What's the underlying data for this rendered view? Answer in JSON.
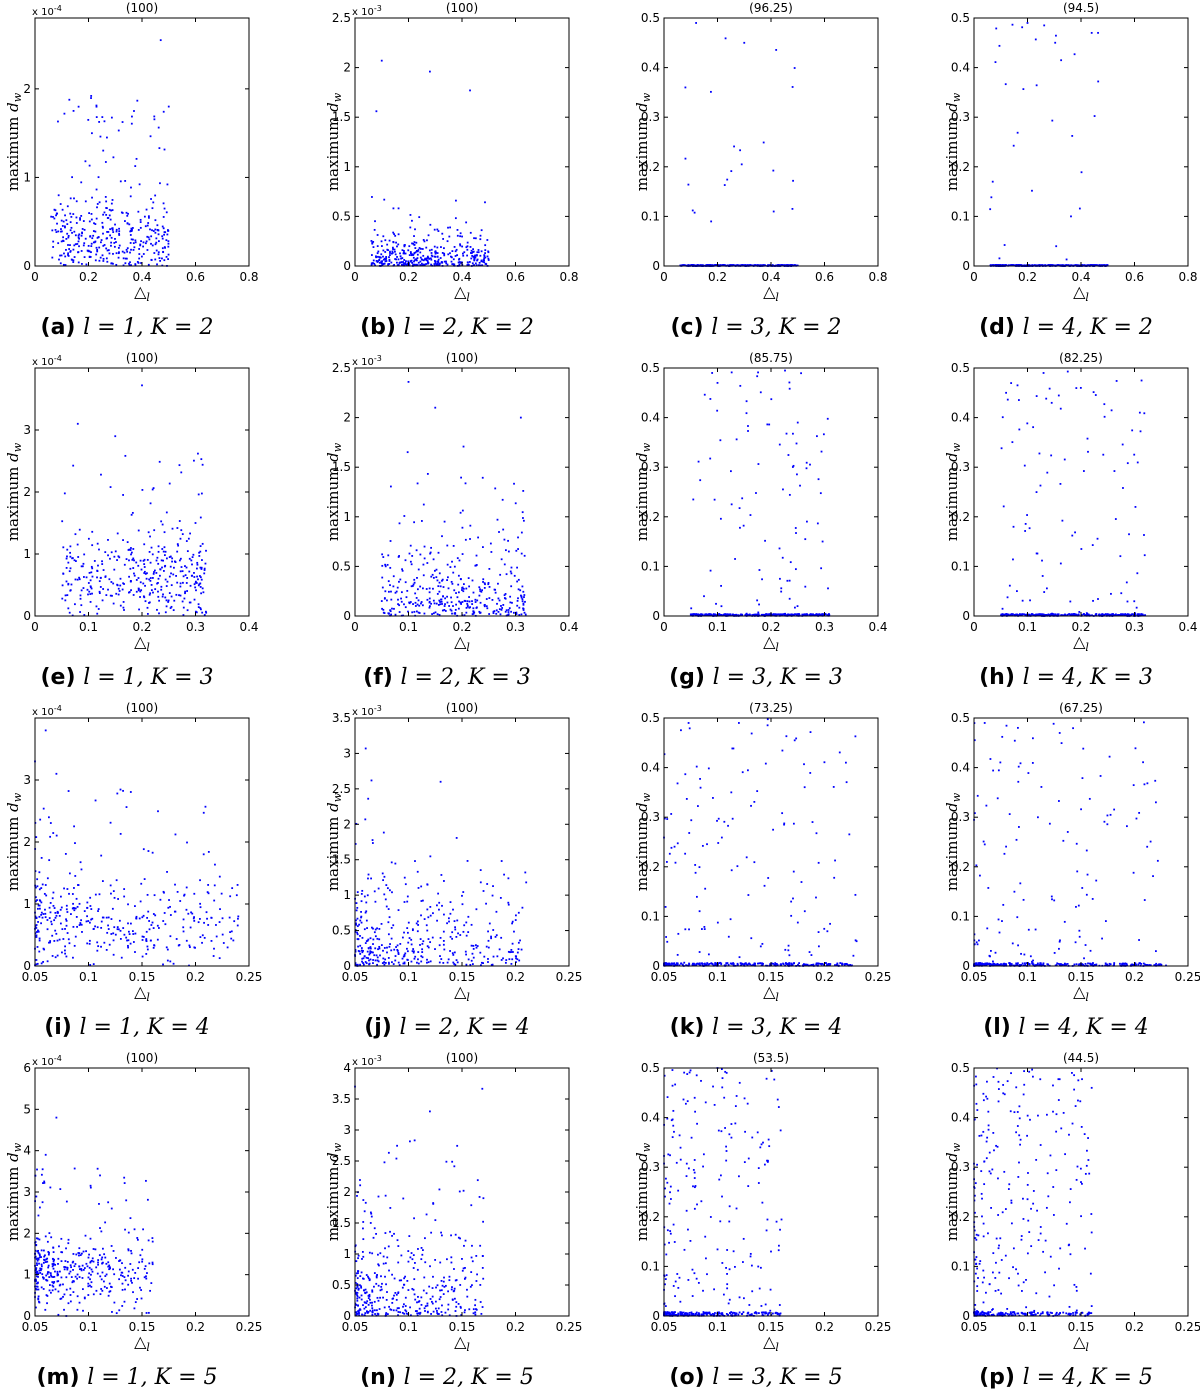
{
  "figure": {
    "y_axis_label": "maximum d_w",
    "x_axis_label": "△_l",
    "point_color": "#0000ff",
    "axis_color": "#000000"
  },
  "chart_data": [
    {
      "type": "scatter",
      "panel": "a",
      "caption_letter": "(a)",
      "caption_math": "l = 1, K = 2",
      "title": "(100)",
      "exponent_label": "x 10^-4",
      "xlim": [
        0,
        0.8
      ],
      "ylim": [
        0,
        0.00028
      ],
      "x_ticks": [
        "0",
        "0.2",
        "0.4",
        "0.6",
        "0.8"
      ],
      "y_ticks": [
        "0",
        "1",
        "2"
      ],
      "x_tick_values": [
        0,
        0.2,
        0.4,
        0.6,
        0.8
      ],
      "y_tick_values": [
        0,
        0.0001,
        0.0002
      ],
      "scatter_profile": {
        "n_points": 400,
        "x_range": [
          0.06,
          0.5
        ],
        "y_dist": "cluster",
        "y_center": 3e-05,
        "y_spread": 4e-05,
        "y_max": 0.00026
      },
      "highlighted_points": [
        {
          "x": 0.47,
          "y": 0.000255
        },
        {
          "x": 0.21,
          "y": 0.000192
        },
        {
          "x": 0.11,
          "y": 0.000172
        },
        {
          "x": 0.5,
          "y": 0.00018
        },
        {
          "x": 0.37,
          "y": 0.000175
        }
      ]
    },
    {
      "type": "scatter",
      "panel": "b",
      "caption_letter": "(b)",
      "caption_math": "l = 2, K = 2",
      "title": "(100)",
      "exponent_label": "x 10^-3",
      "xlim": [
        0,
        0.8
      ],
      "ylim": [
        0,
        0.0025
      ],
      "x_ticks": [
        "0",
        "0.2",
        "0.4",
        "0.6",
        "0.8"
      ],
      "y_ticks": [
        "0",
        "0.5",
        "1",
        "1.5",
        "2",
        "2.5"
      ],
      "x_tick_values": [
        0,
        0.2,
        0.4,
        0.6,
        0.8
      ],
      "y_tick_values": [
        0,
        0.0005,
        0.001,
        0.0015,
        0.002,
        0.0025
      ],
      "scatter_profile": {
        "n_points": 400,
        "x_range": [
          0.06,
          0.5
        ],
        "y_dist": "exp",
        "y_scale": 0.00012,
        "y_max": 0.0021
      },
      "highlighted_points": [
        {
          "x": 0.1,
          "y": 0.00207
        },
        {
          "x": 0.28,
          "y": 0.00196
        },
        {
          "x": 0.43,
          "y": 0.00177
        },
        {
          "x": 0.08,
          "y": 0.00156
        }
      ]
    },
    {
      "type": "scatter",
      "panel": "c",
      "caption_letter": "(c)",
      "caption_math": "l = 3, K = 2",
      "title": "(96.25)",
      "exponent_label": "",
      "xlim": [
        0,
        0.8
      ],
      "ylim": [
        0,
        0.5
      ],
      "x_ticks": [
        "0",
        "0.2",
        "0.4",
        "0.6",
        "0.8"
      ],
      "y_ticks": [
        "0",
        "0.1",
        "0.2",
        "0.3",
        "0.4",
        "0.5"
      ],
      "x_tick_values": [
        0,
        0.2,
        0.4,
        0.6,
        0.8
      ],
      "y_tick_values": [
        0,
        0.1,
        0.2,
        0.3,
        0.4,
        0.5
      ],
      "scatter_profile": {
        "n_points": 400,
        "x_range": [
          0.06,
          0.5
        ],
        "y_dist": "mixture",
        "zero_frac": 0.93,
        "zero_max": 0.002,
        "y_max": 0.5
      },
      "highlighted_points": [
        {
          "x": 0.12,
          "y": 0.49
        },
        {
          "x": 0.3,
          "y": 0.45
        },
        {
          "x": 0.08,
          "y": 0.36
        }
      ]
    },
    {
      "type": "scatter",
      "panel": "d",
      "caption_letter": "(d)",
      "caption_math": "l = 4, K = 2",
      "title": "(94.5)",
      "exponent_label": "",
      "xlim": [
        0,
        0.8
      ],
      "ylim": [
        0,
        0.5
      ],
      "x_ticks": [
        "0",
        "0.2",
        "0.4",
        "0.6",
        "0.8"
      ],
      "y_ticks": [
        "0",
        "0.1",
        "0.2",
        "0.3",
        "0.4",
        "0.5"
      ],
      "x_tick_values": [
        0,
        0.2,
        0.4,
        0.6,
        0.8
      ],
      "y_tick_values": [
        0,
        0.1,
        0.2,
        0.3,
        0.4,
        0.5
      ],
      "scatter_profile": {
        "n_points": 400,
        "x_range": [
          0.06,
          0.5
        ],
        "y_dist": "mixture",
        "zero_frac": 0.92,
        "zero_max": 0.002,
        "y_max": 0.5
      },
      "highlighted_points": [
        {
          "x": 0.2,
          "y": 0.49
        },
        {
          "x": 0.44,
          "y": 0.47
        },
        {
          "x": 0.07,
          "y": 0.17
        }
      ]
    },
    {
      "type": "scatter",
      "panel": "e",
      "caption_letter": "(e)",
      "caption_math": "l = 1, K = 3",
      "title": "(100)",
      "exponent_label": "x 10^-4",
      "xlim": [
        0,
        0.4
      ],
      "ylim": [
        0,
        0.0004
      ],
      "x_ticks": [
        "0",
        "0.1",
        "0.2",
        "0.3",
        "0.4"
      ],
      "y_ticks": [
        "0",
        "1",
        "2",
        "3"
      ],
      "x_tick_values": [
        0,
        0.1,
        0.2,
        0.3,
        0.4
      ],
      "y_tick_values": [
        0,
        0.0001,
        0.0002,
        0.0003
      ],
      "scatter_profile": {
        "n_points": 400,
        "x_range": [
          0.05,
          0.32
        ],
        "y_dist": "cluster",
        "y_center": 6e-05,
        "y_spread": 6e-05,
        "y_max": 0.00037
      },
      "highlighted_points": [
        {
          "x": 0.2,
          "y": 0.000372
        },
        {
          "x": 0.08,
          "y": 0.00031
        },
        {
          "x": 0.15,
          "y": 0.00029
        },
        {
          "x": 0.3,
          "y": 0.00015
        }
      ]
    },
    {
      "type": "scatter",
      "panel": "f",
      "caption_letter": "(f)",
      "caption_math": "l = 2, K = 3",
      "title": "(100)",
      "exponent_label": "x 10^-3",
      "xlim": [
        0,
        0.4
      ],
      "ylim": [
        0,
        0.0025
      ],
      "x_ticks": [
        "0",
        "0.1",
        "0.2",
        "0.3",
        "0.4"
      ],
      "y_ticks": [
        "0",
        "0.5",
        "1",
        "1.5",
        "2",
        "2.5"
      ],
      "x_tick_values": [
        0,
        0.1,
        0.2,
        0.3,
        0.4
      ],
      "y_tick_values": [
        0,
        0.0005,
        0.001,
        0.0015,
        0.002,
        0.0025
      ],
      "scatter_profile": {
        "n_points": 400,
        "x_range": [
          0.05,
          0.32
        ],
        "y_dist": "exp",
        "y_scale": 0.0003,
        "y_max": 0.0024
      },
      "highlighted_points": [
        {
          "x": 0.1,
          "y": 0.00236
        },
        {
          "x": 0.15,
          "y": 0.0021
        },
        {
          "x": 0.31,
          "y": 0.002
        }
      ]
    },
    {
      "type": "scatter",
      "panel": "g",
      "caption_letter": "(g)",
      "caption_math": "l = 3, K = 3",
      "title": "(85.75)",
      "exponent_label": "",
      "xlim": [
        0,
        0.4
      ],
      "ylim": [
        0,
        0.5
      ],
      "x_ticks": [
        "0",
        "0.1",
        "0.2",
        "0.3",
        "0.4"
      ],
      "y_ticks": [
        "0",
        "0.1",
        "0.2",
        "0.3",
        "0.4",
        "0.5"
      ],
      "x_tick_values": [
        0,
        0.1,
        0.2,
        0.3,
        0.4
      ],
      "y_tick_values": [
        0,
        0.1,
        0.2,
        0.3,
        0.4,
        0.5
      ],
      "scatter_profile": {
        "n_points": 400,
        "x_range": [
          0.05,
          0.31
        ],
        "y_dist": "mixture",
        "zero_frac": 0.8,
        "zero_max": 0.004,
        "y_max": 0.5
      },
      "highlighted_points": [
        {
          "x": 0.09,
          "y": 0.49
        },
        {
          "x": 0.1,
          "y": 0.47
        },
        {
          "x": 0.25,
          "y": 0.39
        }
      ]
    },
    {
      "type": "scatter",
      "panel": "h",
      "caption_letter": "(h)",
      "caption_math": "l = 4, K = 3",
      "title": "(82.25)",
      "exponent_label": "",
      "xlim": [
        0,
        0.4
      ],
      "ylim": [
        0,
        0.5
      ],
      "x_ticks": [
        "0",
        "0.1",
        "0.2",
        "0.3",
        "0.4"
      ],
      "y_ticks": [
        "0",
        "0.1",
        "0.2",
        "0.3",
        "0.4",
        "0.5"
      ],
      "x_tick_values": [
        0,
        0.1,
        0.2,
        0.3,
        0.4
      ],
      "y_tick_values": [
        0,
        0.1,
        0.2,
        0.3,
        0.4,
        0.5
      ],
      "scatter_profile": {
        "n_points": 400,
        "x_range": [
          0.05,
          0.32
        ],
        "y_dist": "mixture",
        "zero_frac": 0.74,
        "zero_max": 0.004,
        "y_max": 0.5
      },
      "highlighted_points": [
        {
          "x": 0.13,
          "y": 0.49
        },
        {
          "x": 0.31,
          "y": 0.41
        },
        {
          "x": 0.06,
          "y": 0.45
        }
      ]
    },
    {
      "type": "scatter",
      "panel": "i",
      "caption_letter": "(i)",
      "caption_math": "l = 1, K = 4",
      "title": "(100)",
      "exponent_label": "x 10^-4",
      "xlim": [
        0.05,
        0.25
      ],
      "ylim": [
        0,
        0.0004
      ],
      "x_ticks": [
        "0.05",
        "0.1",
        "0.15",
        "0.2",
        "0.25"
      ],
      "y_ticks": [
        "0",
        "1",
        "2",
        "3"
      ],
      "x_tick_values": [
        0.05,
        0.1,
        0.15,
        0.2,
        0.25
      ],
      "y_tick_values": [
        0,
        0.0001,
        0.0002,
        0.0003
      ],
      "scatter_profile": {
        "n_points": 400,
        "x_range": [
          0.05,
          0.24
        ],
        "x_skew": 1.6,
        "y_dist": "cluster",
        "y_center": 7e-05,
        "y_spread": 6e-05,
        "y_max": 0.00038
      },
      "highlighted_points": [
        {
          "x": 0.06,
          "y": 0.00038
        },
        {
          "x": 0.05,
          "y": 0.00033
        },
        {
          "x": 0.07,
          "y": 0.00031
        },
        {
          "x": 0.24,
          "y": 8e-05
        },
        {
          "x": 0.23,
          "y": 3e-05
        }
      ]
    },
    {
      "type": "scatter",
      "panel": "j",
      "caption_letter": "(j)",
      "caption_math": "l = 2, K = 4",
      "title": "(100)",
      "exponent_label": "x 10^-3",
      "xlim": [
        0.05,
        0.25
      ],
      "ylim": [
        0,
        0.0035
      ],
      "x_ticks": [
        "0.05",
        "0.1",
        "0.15",
        "0.2",
        "0.25"
      ],
      "y_ticks": [
        "0",
        "0.5",
        "1",
        "1.5",
        "2",
        "2.5",
        "3",
        "3.5"
      ],
      "x_tick_values": [
        0.05,
        0.1,
        0.15,
        0.2,
        0.25
      ],
      "y_tick_values": [
        0,
        0.0005,
        0.001,
        0.0015,
        0.002,
        0.0025,
        0.003,
        0.0035
      ],
      "scatter_profile": {
        "n_points": 400,
        "x_range": [
          0.05,
          0.21
        ],
        "x_skew": 1.5,
        "y_dist": "exp",
        "y_scale": 0.0005,
        "y_max": 0.0031
      },
      "highlighted_points": [
        {
          "x": 0.06,
          "y": 0.00307
        },
        {
          "x": 0.13,
          "y": 0.0026
        },
        {
          "x": 0.21,
          "y": 0.00118
        }
      ]
    },
    {
      "type": "scatter",
      "panel": "k",
      "caption_letter": "(k)",
      "caption_math": "l = 3, K = 4",
      "title": "(73.25)",
      "exponent_label": "",
      "xlim": [
        0.05,
        0.25
      ],
      "ylim": [
        0,
        0.5
      ],
      "x_ticks": [
        "0.05",
        "0.1",
        "0.15",
        "0.2",
        "0.25"
      ],
      "y_ticks": [
        "0",
        "0.1",
        "0.2",
        "0.3",
        "0.4",
        "0.5"
      ],
      "x_tick_values": [
        0.05,
        0.1,
        0.15,
        0.2,
        0.25
      ],
      "y_tick_values": [
        0,
        0.1,
        0.2,
        0.3,
        0.4,
        0.5
      ],
      "scatter_profile": {
        "n_points": 400,
        "x_range": [
          0.05,
          0.23
        ],
        "x_skew": 1.4,
        "y_dist": "mixture",
        "zero_frac": 0.7,
        "zero_max": 0.006,
        "y_max": 0.5
      },
      "highlighted_points": [
        {
          "x": 0.22,
          "y": 0.41
        },
        {
          "x": 0.23,
          "y": 0.05
        },
        {
          "x": 0.12,
          "y": 0.49
        }
      ]
    },
    {
      "type": "scatter",
      "panel": "l",
      "caption_letter": "(l)",
      "caption_math": "l = 4, K = 4",
      "title": "(67.25)",
      "exponent_label": "",
      "xlim": [
        0.05,
        0.25
      ],
      "ylim": [
        0,
        0.5
      ],
      "x_ticks": [
        "0.05",
        "0.1",
        "0.15",
        "0.2",
        "0.25"
      ],
      "y_ticks": [
        "0",
        "0.1",
        "0.2",
        "0.3",
        "0.4",
        "0.5"
      ],
      "x_tick_values": [
        0.05,
        0.1,
        0.15,
        0.2,
        0.25
      ],
      "y_tick_values": [
        0,
        0.1,
        0.2,
        0.3,
        0.4,
        0.5
      ],
      "scatter_profile": {
        "n_points": 400,
        "x_range": [
          0.05,
          0.23
        ],
        "x_skew": 1.4,
        "y_dist": "mixture",
        "zero_frac": 0.62,
        "zero_max": 0.006,
        "y_max": 0.5
      },
      "highlighted_points": [
        {
          "x": 0.22,
          "y": 0.33
        },
        {
          "x": 0.22,
          "y": 0.03
        },
        {
          "x": 0.06,
          "y": 0.49
        }
      ]
    },
    {
      "type": "scatter",
      "panel": "m",
      "caption_letter": "(m)",
      "caption_math": "l = 1, K = 5",
      "title": "(100)",
      "exponent_label": "x 10^-4",
      "xlim": [
        0.05,
        0.25
      ],
      "ylim": [
        0,
        0.0006
      ],
      "x_ticks": [
        "0.05",
        "0.1",
        "0.15",
        "0.2",
        "0.25"
      ],
      "y_ticks": [
        "0",
        "1",
        "2",
        "3",
        "4",
        "5",
        "6"
      ],
      "x_tick_values": [
        0.05,
        0.1,
        0.15,
        0.2,
        0.25
      ],
      "y_tick_values": [
        0,
        0.0001,
        0.0002,
        0.0003,
        0.0004,
        0.0005,
        0.0006
      ],
      "scatter_profile": {
        "n_points": 400,
        "x_range": [
          0.05,
          0.16
        ],
        "x_skew": 1.8,
        "y_dist": "cluster",
        "y_center": 0.0001,
        "y_spread": 7e-05,
        "y_max": 0.00048
      },
      "highlighted_points": [
        {
          "x": 0.07,
          "y": 0.00048
        },
        {
          "x": 0.06,
          "y": 0.00039
        },
        {
          "x": 0.16,
          "y": 0.00018
        }
      ]
    },
    {
      "type": "scatter",
      "panel": "n",
      "caption_letter": "(n)",
      "caption_math": "l = 2, K = 5",
      "title": "(100)",
      "exponent_label": "x 10^-3",
      "xlim": [
        0.05,
        0.25
      ],
      "ylim": [
        0,
        0.004
      ],
      "x_ticks": [
        "0.05",
        "0.1",
        "0.15",
        "0.2",
        "0.25"
      ],
      "y_ticks": [
        "0",
        "0.5",
        "1",
        "1.5",
        "2",
        "2.5",
        "3",
        "3.5",
        "4"
      ],
      "x_tick_values": [
        0.05,
        0.1,
        0.15,
        0.2,
        0.25
      ],
      "y_tick_values": [
        0,
        0.0005,
        0.001,
        0.0015,
        0.002,
        0.0025,
        0.003,
        0.0035,
        0.004
      ],
      "scatter_profile": {
        "n_points": 400,
        "x_range": [
          0.05,
          0.17
        ],
        "x_skew": 1.6,
        "y_dist": "exp",
        "y_scale": 0.0006,
        "y_max": 0.0038
      },
      "highlighted_points": [
        {
          "x": 0.05,
          "y": 0.0037
        },
        {
          "x": 0.12,
          "y": 0.0033
        },
        {
          "x": 0.17,
          "y": 0.0019
        }
      ]
    },
    {
      "type": "scatter",
      "panel": "o",
      "caption_letter": "(o)",
      "caption_math": "l = 3, K = 5",
      "title": "(53.5)",
      "exponent_label": "",
      "xlim": [
        0.05,
        0.25
      ],
      "ylim": [
        0,
        0.5
      ],
      "x_ticks": [
        "0.05",
        "0.1",
        "0.15",
        "0.2",
        "0.25"
      ],
      "y_ticks": [
        "0",
        "0.1",
        "0.2",
        "0.3",
        "0.4",
        "0.5"
      ],
      "x_tick_values": [
        0.05,
        0.1,
        0.15,
        0.2,
        0.25
      ],
      "y_tick_values": [
        0,
        0.1,
        0.2,
        0.3,
        0.4,
        0.5
      ],
      "scatter_profile": {
        "n_points": 400,
        "x_range": [
          0.05,
          0.16
        ],
        "x_skew": 1.7,
        "y_dist": "mixture",
        "zero_frac": 0.5,
        "zero_max": 0.008,
        "y_max": 0.5
      },
      "highlighted_points": [
        {
          "x": 0.15,
          "y": 0.13
        },
        {
          "x": 0.14,
          "y": 0.34
        },
        {
          "x": 0.1,
          "y": 0.5
        }
      ]
    },
    {
      "type": "scatter",
      "panel": "p",
      "caption_letter": "(p)",
      "caption_math": "l = 4, K = 5",
      "title": "(44.5)",
      "exponent_label": "",
      "xlim": [
        0.05,
        0.25
      ],
      "ylim": [
        0,
        0.5
      ],
      "x_ticks": [
        "0.05",
        "0.1",
        "0.15",
        "0.2",
        "0.25"
      ],
      "y_ticks": [
        "0",
        "0.1",
        "0.2",
        "0.3",
        "0.4",
        "0.5"
      ],
      "x_tick_values": [
        0.05,
        0.1,
        0.15,
        0.2,
        0.25
      ],
      "y_tick_values": [
        0,
        0.1,
        0.2,
        0.3,
        0.4,
        0.5
      ],
      "scatter_profile": {
        "n_points": 400,
        "x_range": [
          0.05,
          0.16
        ],
        "x_skew": 1.7,
        "y_dist": "mixture",
        "zero_frac": 0.42,
        "zero_max": 0.008,
        "y_max": 0.5
      },
      "highlighted_points": [
        {
          "x": 0.16,
          "y": 0.46
        },
        {
          "x": 0.15,
          "y": 0.27
        },
        {
          "x": 0.16,
          "y": 0.02
        }
      ]
    }
  ]
}
